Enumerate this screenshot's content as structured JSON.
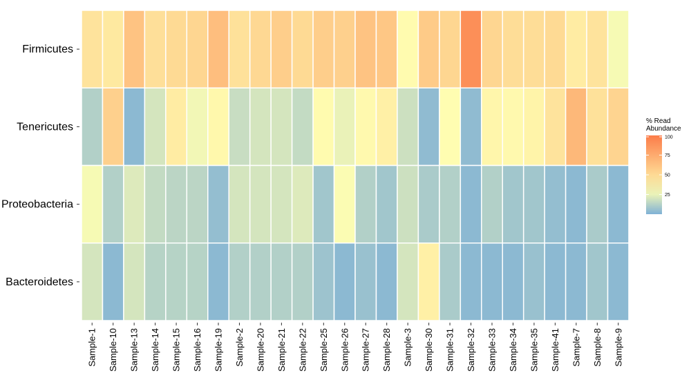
{
  "chart_data": {
    "type": "heatmap",
    "title": "",
    "xlabel": "",
    "ylabel": "",
    "x": [
      "Sample-1",
      "Sample-10",
      "Sample-13",
      "Sample-14",
      "Sample-15",
      "Sample-16",
      "Sample-19",
      "Sample-2",
      "Sample-20",
      "Sample-21",
      "Sample-22",
      "Sample-25",
      "Sample-26",
      "Sample-27",
      "Sample-28",
      "Sample-3",
      "Sample-30",
      "Sample-31",
      "Sample-32",
      "Sample-33",
      "Sample-34",
      "Sample-35",
      "Sample-41",
      "Sample-7",
      "Sample-8",
      "Sample-9"
    ],
    "y": [
      "Firmicutes",
      "Tenericutes",
      "Proteobacteria",
      "Bacteroidetes"
    ],
    "values": [
      [
        45,
        42,
        62,
        47,
        50,
        52,
        65,
        46,
        51,
        56,
        50,
        56,
        55,
        62,
        60,
        32,
        58,
        52,
        90,
        52,
        48,
        48,
        50,
        40,
        45,
        28
      ],
      [
        12,
        55,
        3,
        20,
        40,
        27,
        34,
        17,
        20,
        20,
        16,
        32,
        25,
        33,
        38,
        18,
        4,
        31,
        4,
        35,
        33,
        36,
        45,
        68,
        46,
        53
      ],
      [
        28,
        12,
        22,
        16,
        14,
        14,
        5,
        20,
        20,
        20,
        22,
        8,
        29,
        12,
        8,
        18,
        10,
        12,
        3,
        12,
        8,
        8,
        5,
        3,
        10,
        3
      ],
      [
        20,
        3,
        20,
        13,
        13,
        13,
        3,
        12,
        12,
        12,
        12,
        7,
        3,
        6,
        3,
        20,
        38,
        10,
        3,
        3,
        3,
        6,
        3,
        3,
        8,
        3
      ]
    ],
    "legend": {
      "title": "% Read Abundance",
      "ticks": [
        25,
        50,
        75,
        100
      ],
      "position": "right"
    },
    "colors": {
      "low": "#7fb1d6",
      "mid": "#ffffb2",
      "high": "#fc7c49"
    },
    "grid": false
  }
}
